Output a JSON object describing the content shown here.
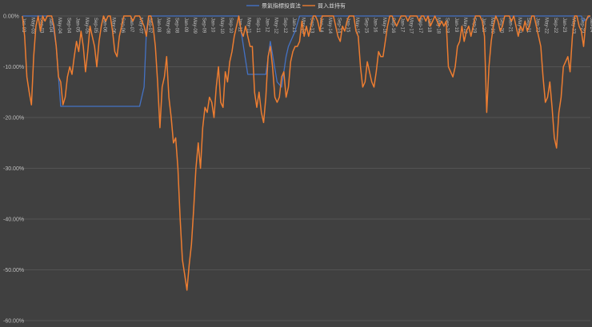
{
  "chart_data": {
    "type": "line",
    "title": "",
    "xlabel": "",
    "ylabel": "",
    "ylim": [
      -60,
      0
    ],
    "y_unit": "%",
    "yticks": [
      "0.00%",
      "-10.00%",
      "-20.00%",
      "-30.00%",
      "-40.00%",
      "-50.00%",
      "-60.00%"
    ],
    "x_start": "2003-01",
    "x_end": "2024-01",
    "xticks": [
      "Jan-03",
      "May-03",
      "Sep-03",
      "Jan-04",
      "May-04",
      "Sep-04",
      "Jan-05",
      "May-05",
      "Sep-05",
      "Jan-06",
      "May-06",
      "Sep-06",
      "Jan-07",
      "May-07",
      "Sep-07",
      "Jan-08",
      "May-08",
      "Sep-08",
      "Jan-09",
      "May-09",
      "Sep-09",
      "Jan-10",
      "May-10",
      "Sep-10",
      "Jan-11",
      "May-11",
      "Sep-11",
      "Jan-12",
      "May-12",
      "Sep-12",
      "Jan-13",
      "May-13",
      "Sep-13",
      "Jan-14",
      "May-14",
      "Sep-14",
      "Jan-15",
      "May-15",
      "Sep-15",
      "Jan-16",
      "May-16",
      "Sep-16",
      "Jan-17",
      "May-17",
      "Sep-17",
      "Jan-18",
      "May-18",
      "Sep-18",
      "Jan-19",
      "May-19",
      "Sep-19",
      "Jan-20",
      "May-20",
      "Sep-20",
      "Jan-21",
      "May-21",
      "Sep-21",
      "Jan-22",
      "May-22",
      "Sep-22",
      "Jan-23",
      "May-23",
      "Sep-23",
      "Jan-24"
    ],
    "gridlines": true,
    "legend_position": "top-center",
    "series": [
      {
        "name": "景氣指標投資法",
        "color": "#4472c4",
        "points": [
          [
            "2003-01",
            0
          ],
          [
            "2003-09",
            0
          ],
          [
            "2004-02",
            0
          ],
          [
            "2004-04",
            -6
          ],
          [
            "2004-06",
            -17.8
          ],
          [
            "2005-06",
            -17.8
          ],
          [
            "2006-06",
            -17.8
          ],
          [
            "2007-01",
            -17.8
          ],
          [
            "2007-05",
            -17.8
          ],
          [
            "2007-07",
            -14
          ],
          [
            "2007-08",
            -3
          ],
          [
            "2007-09",
            0
          ],
          [
            "2007-10",
            0
          ],
          [
            "2011-01",
            0
          ],
          [
            "2011-05",
            -11.5
          ],
          [
            "2012-01",
            -11.5
          ],
          [
            "2012-03",
            -5
          ],
          [
            "2012-06",
            -13
          ],
          [
            "2012-08",
            -14
          ],
          [
            "2012-10",
            -8
          ],
          [
            "2012-11",
            -6
          ],
          [
            "2013-02",
            -3
          ],
          [
            "2013-04",
            0
          ],
          [
            "2016-01",
            0
          ],
          [
            "2022-01",
            0
          ],
          [
            "2022-02",
            0
          ],
          [
            "2023-09",
            0
          ],
          [
            "2023-10",
            -1
          ],
          [
            "2024-01",
            0
          ]
        ]
      },
      {
        "name": "買入並持有",
        "color": "#ed7d31",
        "points": [
          [
            "2003-01",
            0
          ],
          [
            "2003-02",
            -4
          ],
          [
            "2003-03",
            -12
          ],
          [
            "2003-04",
            -15
          ],
          [
            "2003-05",
            -17.5
          ],
          [
            "2003-06",
            -8
          ],
          [
            "2003-07",
            -2
          ],
          [
            "2003-08",
            0
          ],
          [
            "2003-09",
            -3
          ],
          [
            "2003-10",
            0
          ],
          [
            "2003-11",
            -1
          ],
          [
            "2003-12",
            0
          ],
          [
            "2004-01",
            0
          ],
          [
            "2004-02",
            0
          ],
          [
            "2004-03",
            -2
          ],
          [
            "2004-04",
            -6
          ],
          [
            "2004-05",
            -12
          ],
          [
            "2004-06",
            -13
          ],
          [
            "2004-07",
            -17.5
          ],
          [
            "2004-08",
            -16
          ],
          [
            "2004-09",
            -12
          ],
          [
            "2004-10",
            -10
          ],
          [
            "2004-11",
            -11.5
          ],
          [
            "2004-12",
            -8
          ],
          [
            "2005-01",
            -5
          ],
          [
            "2005-02",
            -7
          ],
          [
            "2005-03",
            -3
          ],
          [
            "2005-04",
            -6
          ],
          [
            "2005-05",
            -11
          ],
          [
            "2005-06",
            -7
          ],
          [
            "2005-07",
            -2
          ],
          [
            "2005-08",
            -4
          ],
          [
            "2005-09",
            -6
          ],
          [
            "2005-10",
            -10
          ],
          [
            "2005-11",
            -5
          ],
          [
            "2005-12",
            -2
          ],
          [
            "2006-01",
            0
          ],
          [
            "2006-02",
            -1
          ],
          [
            "2006-03",
            0
          ],
          [
            "2006-04",
            0
          ],
          [
            "2006-05",
            -3
          ],
          [
            "2006-06",
            -7
          ],
          [
            "2006-07",
            -8
          ],
          [
            "2006-08",
            -4
          ],
          [
            "2006-09",
            -2
          ],
          [
            "2006-10",
            0
          ],
          [
            "2006-11",
            0
          ],
          [
            "2006-12",
            0
          ],
          [
            "2007-01",
            0
          ],
          [
            "2007-02",
            -1
          ],
          [
            "2007-03",
            0
          ],
          [
            "2007-04",
            0
          ],
          [
            "2007-05",
            0
          ],
          [
            "2007-06",
            -1
          ],
          [
            "2007-07",
            -2
          ],
          [
            "2007-08",
            -4
          ],
          [
            "2007-09",
            0
          ],
          [
            "2007-10",
            0
          ],
          [
            "2007-11",
            -2
          ],
          [
            "2007-12",
            -6
          ],
          [
            "2008-01",
            -13
          ],
          [
            "2008-02",
            -22
          ],
          [
            "2008-03",
            -14
          ],
          [
            "2008-04",
            -12
          ],
          [
            "2008-05",
            -8
          ],
          [
            "2008-06",
            -16
          ],
          [
            "2008-07",
            -20
          ],
          [
            "2008-08",
            -25
          ],
          [
            "2008-09",
            -24
          ],
          [
            "2008-10",
            -30
          ],
          [
            "2008-11",
            -40
          ],
          [
            "2008-12",
            -48
          ],
          [
            "2009-01",
            -51
          ],
          [
            "2009-02",
            -54
          ],
          [
            "2009-03",
            -49
          ],
          [
            "2009-04",
            -45
          ],
          [
            "2009-05",
            -38
          ],
          [
            "2009-06",
            -30
          ],
          [
            "2009-07",
            -25
          ],
          [
            "2009-08",
            -30
          ],
          [
            "2009-09",
            -22
          ],
          [
            "2009-10",
            -18
          ],
          [
            "2009-11",
            -19
          ],
          [
            "2009-12",
            -16
          ],
          [
            "2010-01",
            -17
          ],
          [
            "2010-02",
            -20
          ],
          [
            "2010-03",
            -14
          ],
          [
            "2010-04",
            -10
          ],
          [
            "2010-05",
            -17
          ],
          [
            "2010-06",
            -18
          ],
          [
            "2010-07",
            -11
          ],
          [
            "2010-08",
            -13
          ],
          [
            "2010-09",
            -9
          ],
          [
            "2010-10",
            -7
          ],
          [
            "2010-11",
            -4
          ],
          [
            "2010-12",
            -2
          ],
          [
            "2011-01",
            0
          ],
          [
            "2011-02",
            -3
          ],
          [
            "2011-03",
            -4
          ],
          [
            "2011-04",
            -2
          ],
          [
            "2011-05",
            -4
          ],
          [
            "2011-06",
            -6
          ],
          [
            "2011-07",
            -6
          ],
          [
            "2011-08",
            -15
          ],
          [
            "2011-09",
            -18
          ],
          [
            "2011-10",
            -15
          ],
          [
            "2011-11",
            -19
          ],
          [
            "2011-12",
            -21
          ],
          [
            "2012-01",
            -16
          ],
          [
            "2012-02",
            -8
          ],
          [
            "2012-03",
            -6
          ],
          [
            "2012-04",
            -10
          ],
          [
            "2012-05",
            -16
          ],
          [
            "2012-06",
            -17
          ],
          [
            "2012-07",
            -16
          ],
          [
            "2012-08",
            -12
          ],
          [
            "2012-09",
            -11
          ],
          [
            "2012-10",
            -16
          ],
          [
            "2012-11",
            -14
          ],
          [
            "2012-12",
            -9
          ],
          [
            "2013-01",
            -7
          ],
          [
            "2013-02",
            -6
          ],
          [
            "2013-03",
            -6
          ],
          [
            "2013-04",
            -5
          ],
          [
            "2013-05",
            -1
          ],
          [
            "2013-06",
            -4
          ],
          [
            "2013-07",
            -2
          ],
          [
            "2013-08",
            -4
          ],
          [
            "2013-09",
            -2
          ],
          [
            "2013-10",
            0
          ],
          [
            "2013-11",
            0
          ],
          [
            "2013-12",
            -1
          ],
          [
            "2014-01",
            -3
          ],
          [
            "2014-02",
            0
          ],
          [
            "2014-03",
            0
          ],
          [
            "2014-04",
            0
          ],
          [
            "2014-05",
            0
          ],
          [
            "2014-06",
            0
          ],
          [
            "2014-07",
            0
          ],
          [
            "2014-08",
            -2
          ],
          [
            "2014-09",
            -4
          ],
          [
            "2014-10",
            -5
          ],
          [
            "2014-11",
            -2
          ],
          [
            "2014-12",
            -3
          ],
          [
            "2015-01",
            -1
          ],
          [
            "2015-02",
            0
          ],
          [
            "2015-03",
            0
          ],
          [
            "2015-04",
            0
          ],
          [
            "2015-05",
            -3
          ],
          [
            "2015-06",
            -4
          ],
          [
            "2015-07",
            -10
          ],
          [
            "2015-08",
            -14
          ],
          [
            "2015-09",
            -13
          ],
          [
            "2015-10",
            -9
          ],
          [
            "2015-11",
            -11
          ],
          [
            "2015-12",
            -13
          ],
          [
            "2016-01",
            -14
          ],
          [
            "2016-02",
            -11
          ],
          [
            "2016-03",
            -7
          ],
          [
            "2016-04",
            -8
          ],
          [
            "2016-05",
            -8
          ],
          [
            "2016-06",
            -5
          ],
          [
            "2016-07",
            -2
          ],
          [
            "2016-08",
            0
          ],
          [
            "2016-09",
            0
          ],
          [
            "2016-10",
            -1
          ],
          [
            "2016-11",
            -2
          ],
          [
            "2016-12",
            -1
          ],
          [
            "2017-01",
            0
          ],
          [
            "2017-02",
            0
          ],
          [
            "2017-03",
            0
          ],
          [
            "2017-04",
            -1
          ],
          [
            "2017-05",
            0
          ],
          [
            "2017-06",
            0
          ],
          [
            "2017-07",
            0
          ],
          [
            "2017-08",
            0
          ],
          [
            "2017-09",
            -1
          ],
          [
            "2017-10",
            0
          ],
          [
            "2017-11",
            0
          ],
          [
            "2017-12",
            -1
          ],
          [
            "2018-01",
            0
          ],
          [
            "2018-02",
            -2
          ],
          [
            "2018-03",
            -1
          ],
          [
            "2018-04",
            0
          ],
          [
            "2018-05",
            -1
          ],
          [
            "2018-06",
            -2
          ],
          [
            "2018-07",
            -1
          ],
          [
            "2018-08",
            -2
          ],
          [
            "2018-09",
            -1
          ],
          [
            "2018-10",
            -10
          ],
          [
            "2018-11",
            -11
          ],
          [
            "2018-12",
            -12
          ],
          [
            "2019-01",
            -10
          ],
          [
            "2019-02",
            -6
          ],
          [
            "2019-03",
            -5
          ],
          [
            "2019-04",
            -2
          ],
          [
            "2019-05",
            -5
          ],
          [
            "2019-06",
            -3
          ],
          [
            "2019-07",
            -2
          ],
          [
            "2019-08",
            -4
          ],
          [
            "2019-09",
            -2
          ],
          [
            "2019-10",
            0
          ],
          [
            "2019-11",
            0
          ],
          [
            "2019-12",
            0
          ],
          [
            "2020-01",
            -1
          ],
          [
            "2020-02",
            -4
          ],
          [
            "2020-03",
            -19
          ],
          [
            "2020-04",
            -10
          ],
          [
            "2020-05",
            -5
          ],
          [
            "2020-06",
            -2
          ],
          [
            "2020-07",
            0
          ],
          [
            "2020-08",
            -1
          ],
          [
            "2020-09",
            -3
          ],
          [
            "2020-10",
            -2
          ],
          [
            "2020-11",
            0
          ],
          [
            "2020-12",
            0
          ],
          [
            "2021-01",
            0
          ],
          [
            "2021-02",
            -1
          ],
          [
            "2021-03",
            0
          ],
          [
            "2021-04",
            -2
          ],
          [
            "2021-05",
            -4
          ],
          [
            "2021-06",
            -2
          ],
          [
            "2021-07",
            -3
          ],
          [
            "2021-08",
            -1
          ],
          [
            "2021-09",
            -3
          ],
          [
            "2021-10",
            -2
          ],
          [
            "2021-11",
            0
          ],
          [
            "2021-12",
            0
          ],
          [
            "2022-01",
            -2
          ],
          [
            "2022-02",
            -4
          ],
          [
            "2022-03",
            -6
          ],
          [
            "2022-04",
            -12
          ],
          [
            "2022-05",
            -17
          ],
          [
            "2022-06",
            -16
          ],
          [
            "2022-07",
            -13
          ],
          [
            "2022-08",
            -18
          ],
          [
            "2022-09",
            -24
          ],
          [
            "2022-10",
            -26
          ],
          [
            "2022-11",
            -19
          ],
          [
            "2022-12",
            -16
          ],
          [
            "2023-01",
            -10
          ],
          [
            "2023-02",
            -9
          ],
          [
            "2023-03",
            -8
          ],
          [
            "2023-04",
            -11
          ],
          [
            "2023-05",
            -4
          ],
          [
            "2023-06",
            0
          ],
          [
            "2023-07",
            0
          ],
          [
            "2023-08",
            -2
          ],
          [
            "2023-09",
            -3
          ],
          [
            "2023-10",
            -6
          ],
          [
            "2023-11",
            -1
          ],
          [
            "2023-12",
            0
          ],
          [
            "2024-01",
            0
          ]
        ]
      }
    ]
  }
}
